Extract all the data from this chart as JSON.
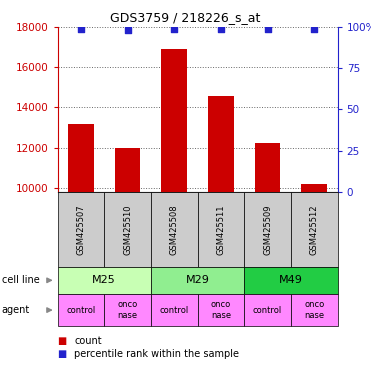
{
  "title": "GDS3759 / 218226_s_at",
  "samples": [
    "GSM425507",
    "GSM425510",
    "GSM425508",
    "GSM425511",
    "GSM425509",
    "GSM425512"
  ],
  "counts": [
    13200,
    12000,
    16900,
    14550,
    12250,
    10200
  ],
  "percentile_ranks": [
    99,
    98,
    99,
    99,
    99,
    99
  ],
  "cell_lines": [
    {
      "label": "M25",
      "span": [
        0,
        2
      ],
      "color": "#c8ffb4"
    },
    {
      "label": "M29",
      "span": [
        2,
        4
      ],
      "color": "#90ee90"
    },
    {
      "label": "M49",
      "span": [
        4,
        6
      ],
      "color": "#22cc44"
    }
  ],
  "agents": [
    "control",
    "onconase",
    "control",
    "onconase",
    "control",
    "onconase"
  ],
  "agent_color": "#ff88ff",
  "ylim_left": [
    9800,
    18000
  ],
  "ylim_right": [
    0,
    100
  ],
  "yticks_left": [
    10000,
    12000,
    14000,
    16000,
    18000
  ],
  "yticks_right": [
    0,
    25,
    50,
    75,
    100
  ],
  "ytick_labels_right": [
    "0",
    "25",
    "50",
    "75",
    "100%"
  ],
  "bar_color": "#cc0000",
  "dot_color": "#2222cc",
  "bar_bottom": 9800,
  "sample_box_color": "#cccccc",
  "left_axis_color": "#cc0000",
  "right_axis_color": "#2222cc",
  "fig_width": 3.71,
  "fig_height": 3.84,
  "dpi": 100
}
